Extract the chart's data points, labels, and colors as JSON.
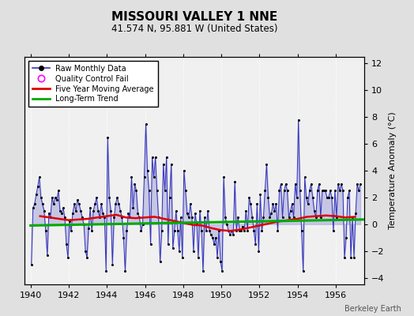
{
  "title": "MISSOURI VALLEY 1 NNE",
  "subtitle": "41.574 N, 95.881 W (United States)",
  "ylabel": "Temperature Anomaly (°C)",
  "credit": "Berkeley Earth",
  "xlim": [
    1939.7,
    1957.5
  ],
  "ylim": [
    -4.5,
    12.5
  ],
  "yticks": [
    -4,
    -2,
    0,
    2,
    4,
    6,
    8,
    10,
    12
  ],
  "xticks": [
    1940,
    1942,
    1944,
    1946,
    1948,
    1950,
    1952,
    1954,
    1956
  ],
  "bg_color": "#e0e0e0",
  "plot_bg_color": "#f0f0f0",
  "raw_line_color": "#3333bb",
  "raw_fill_color": "#aaaadd",
  "marker_color": "#000000",
  "ma_color": "#dd0000",
  "trend_color": "#00aa00",
  "grid_color": "#cccccc",
  "raw_data_x": [
    1940.0417,
    1940.125,
    1940.2083,
    1940.2917,
    1940.375,
    1940.4583,
    1940.5417,
    1940.625,
    1940.7083,
    1940.7917,
    1940.875,
    1940.9583,
    1941.0417,
    1941.125,
    1941.2083,
    1941.2917,
    1941.375,
    1941.4583,
    1941.5417,
    1941.625,
    1941.7083,
    1941.7917,
    1941.875,
    1941.9583,
    1942.0417,
    1942.125,
    1942.2083,
    1942.2917,
    1942.375,
    1942.4583,
    1942.5417,
    1942.625,
    1942.7083,
    1942.7917,
    1942.875,
    1942.9583,
    1943.0417,
    1943.125,
    1943.2083,
    1943.2917,
    1943.375,
    1943.4583,
    1943.5417,
    1943.625,
    1943.7083,
    1943.7917,
    1943.875,
    1943.9583,
    1944.0417,
    1944.125,
    1944.2083,
    1944.2917,
    1944.375,
    1944.4583,
    1944.5417,
    1944.625,
    1944.7083,
    1944.7917,
    1944.875,
    1944.9583,
    1945.0417,
    1945.125,
    1945.2083,
    1945.2917,
    1945.375,
    1945.4583,
    1945.5417,
    1945.625,
    1945.7083,
    1945.7917,
    1945.875,
    1945.9583,
    1946.0417,
    1946.125,
    1946.2083,
    1946.2917,
    1946.375,
    1946.4583,
    1946.5417,
    1946.625,
    1946.7083,
    1946.7917,
    1946.875,
    1946.9583,
    1947.0417,
    1947.125,
    1947.2083,
    1947.2917,
    1947.375,
    1947.4583,
    1947.5417,
    1947.625,
    1947.7083,
    1947.7917,
    1947.875,
    1947.9583,
    1948.0417,
    1948.125,
    1948.2083,
    1948.2917,
    1948.375,
    1948.4583,
    1948.5417,
    1948.625,
    1948.7083,
    1948.7917,
    1948.875,
    1948.9583,
    1949.0417,
    1949.125,
    1949.2083,
    1949.2917,
    1949.375,
    1949.4583,
    1949.5417,
    1949.625,
    1949.7083,
    1949.7917,
    1949.875,
    1949.9583,
    1950.0417,
    1950.125,
    1950.2083,
    1950.2917,
    1950.375,
    1950.4583,
    1950.5417,
    1950.625,
    1950.7083,
    1950.7917,
    1950.875,
    1950.9583,
    1951.0417,
    1951.125,
    1951.2083,
    1951.2917,
    1951.375,
    1951.4583,
    1951.5417,
    1951.625,
    1951.7083,
    1951.7917,
    1951.875,
    1951.9583,
    1952.0417,
    1952.125,
    1952.2083,
    1952.2917,
    1952.375,
    1952.4583,
    1952.5417,
    1952.625,
    1952.7083,
    1952.7917,
    1952.875,
    1952.9583,
    1953.0417,
    1953.125,
    1953.2083,
    1953.2917,
    1953.375,
    1953.4583,
    1953.5417,
    1953.625,
    1953.7083,
    1953.7917,
    1953.875,
    1953.9583,
    1954.0417,
    1954.125,
    1954.2083,
    1954.2917,
    1954.375,
    1954.4583,
    1954.5417,
    1954.625,
    1954.7083,
    1954.7917,
    1954.875,
    1954.9583,
    1955.0417,
    1955.125,
    1955.2083,
    1955.2917,
    1955.375,
    1955.4583,
    1955.5417,
    1955.625,
    1955.7083,
    1955.7917,
    1955.875,
    1955.9583,
    1956.0417,
    1956.125,
    1956.2083,
    1956.2917,
    1956.375,
    1956.4583,
    1956.5417,
    1956.625,
    1956.7083,
    1956.7917,
    1956.875,
    1956.9583,
    1957.0417,
    1957.125,
    1957.2083,
    1957.2917
  ],
  "raw_data_y": [
    -3.0,
    1.2,
    1.5,
    2.2,
    2.8,
    3.5,
    2.0,
    1.5,
    1.0,
    -0.5,
    -2.3,
    0.8,
    0.5,
    2.0,
    1.5,
    2.0,
    1.8,
    2.5,
    1.0,
    0.8,
    1.2,
    0.5,
    -1.5,
    -2.5,
    0.2,
    -0.5,
    0.8,
    1.5,
    1.0,
    1.8,
    1.5,
    1.0,
    0.5,
    0.0,
    -2.0,
    -2.5,
    -0.3,
    1.2,
    -0.5,
    1.0,
    1.5,
    2.0,
    1.0,
    0.5,
    1.5,
    0.8,
    0.5,
    -3.5,
    6.5,
    2.0,
    1.0,
    -3.0,
    0.5,
    1.5,
    2.0,
    1.5,
    1.0,
    0.5,
    -1.0,
    -3.5,
    -0.5,
    0.8,
    0.5,
    3.5,
    1.2,
    3.0,
    2.5,
    0.8,
    0.5,
    -0.5,
    0.0,
    3.5,
    7.5,
    4.0,
    2.5,
    -1.5,
    5.0,
    3.5,
    5.0,
    2.5,
    0.5,
    -2.8,
    -0.5,
    4.5,
    2.5,
    5.0,
    -1.5,
    2.0,
    4.5,
    -1.8,
    -0.5,
    1.0,
    -0.5,
    -2.0,
    0.5,
    -2.5,
    4.0,
    2.5,
    0.8,
    0.5,
    1.5,
    0.5,
    -2.0,
    0.8,
    0.0,
    -2.5,
    1.0,
    -0.5,
    -3.5,
    0.5,
    -0.5,
    1.0,
    -0.5,
    -0.8,
    -1.0,
    -1.5,
    -1.0,
    -2.5,
    -0.5,
    -2.8,
    -3.5,
    3.5,
    0.5,
    0.0,
    -0.5,
    -0.8,
    -0.5,
    -0.8,
    3.2,
    -0.5,
    0.5,
    -0.5,
    -0.5,
    -0.2,
    -0.5,
    1.0,
    -0.5,
    2.0,
    1.5,
    0.5,
    -0.5,
    -1.5,
    1.5,
    -2.0,
    2.2,
    -0.5,
    0.5,
    2.5,
    4.5,
    2.0,
    0.5,
    0.8,
    1.5,
    1.0,
    1.5,
    -0.5,
    2.5,
    3.0,
    0.5,
    2.5,
    3.0,
    2.5,
    0.5,
    1.0,
    1.5,
    0.5,
    3.0,
    2.0,
    7.8,
    2.5,
    -0.5,
    -3.5,
    3.5,
    2.0,
    1.5,
    2.5,
    3.0,
    2.0,
    1.0,
    0.5,
    2.5,
    3.0,
    0.5,
    2.5,
    2.5,
    2.5,
    2.0,
    2.0,
    2.5,
    2.0,
    -0.5,
    2.5,
    0.5,
    3.0,
    2.5,
    3.0,
    2.5,
    -2.5,
    -1.0,
    2.0,
    2.5,
    -2.5,
    0.5,
    -2.5,
    0.8,
    3.0,
    2.5,
    3.0
  ],
  "moving_avg_x": [
    1940.5,
    1941.0,
    1941.5,
    1942.0,
    1942.5,
    1943.0,
    1943.5,
    1944.0,
    1944.5,
    1945.0,
    1945.5,
    1946.0,
    1946.5,
    1947.0,
    1947.5,
    1948.0,
    1948.5,
    1949.0,
    1949.5,
    1950.0,
    1950.5,
    1951.0,
    1951.5,
    1952.0,
    1952.5,
    1953.0,
    1953.5,
    1954.0,
    1954.5,
    1955.0,
    1955.5,
    1956.0,
    1956.5,
    1957.0
  ],
  "moving_avg_y": [
    0.6,
    0.5,
    0.4,
    0.3,
    0.35,
    0.4,
    0.5,
    0.6,
    0.7,
    0.5,
    0.45,
    0.5,
    0.55,
    0.4,
    0.25,
    0.1,
    -0.05,
    -0.1,
    -0.3,
    -0.45,
    -0.5,
    -0.4,
    -0.25,
    -0.1,
    0.05,
    0.2,
    0.3,
    0.4,
    0.55,
    0.6,
    0.65,
    0.6,
    0.5,
    0.55
  ],
  "trend_x": [
    1940.0,
    1957.5
  ],
  "trend_y": [
    -0.1,
    0.35
  ]
}
